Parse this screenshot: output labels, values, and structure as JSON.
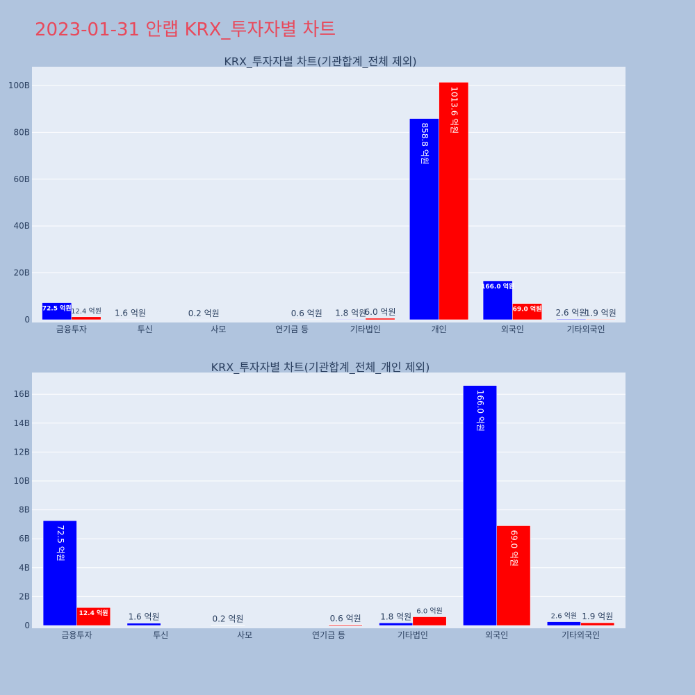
{
  "title": "2023-01-31 안랩 KRX_투자자별 차트",
  "colors": {
    "background": "#b0c4de",
    "plot_bg": "#e5ecf6",
    "title": "#e8495b",
    "buy": "#0000ff",
    "sell": "#ff0000",
    "text": "#2a3f5f"
  },
  "chart_data": [
    {
      "type": "bar",
      "title": "KRX_투자자별 차트(기관합계_전체 제외)",
      "categories": [
        "금융투자",
        "투신",
        "사모",
        "연기금 등",
        "기타법인",
        "개인",
        "외국인",
        "기타외국인"
      ],
      "series": [
        {
          "color": "#0000ff",
          "values": [
            7250000000,
            160000000,
            20000000,
            0,
            180000000,
            85880000000,
            16600000000,
            260000000
          ],
          "labels": [
            "72.5 억원",
            "1.6 억원",
            "0.2 억원",
            "",
            "1.8 억원",
            "858.8 억원",
            "166.0 억원",
            "2.6 억원"
          ]
        },
        {
          "color": "#ff0000",
          "values": [
            1240000000,
            0,
            0,
            60000000,
            600000000,
            101360000000,
            6900000000,
            190000000
          ],
          "labels": [
            "12.4 억원",
            "",
            "",
            "0.6 억원",
            "6.0 억원",
            "1013.6 억원",
            "69.0 억원",
            "1.9 억원"
          ]
        }
      ],
      "yticks": [
        0,
        20000000000,
        40000000000,
        60000000000,
        80000000000,
        100000000000
      ],
      "ytick_labels": [
        "0",
        "20B",
        "40B",
        "60B",
        "80B",
        "100B"
      ],
      "ylim": [
        0,
        108000000000
      ]
    },
    {
      "type": "bar",
      "title": "KRX_투자자별 차트(기관합계_전체_개인 제외)",
      "categories": [
        "금융투자",
        "투신",
        "사모",
        "연기금 등",
        "기타법인",
        "외국인",
        "기타외국인"
      ],
      "series": [
        {
          "color": "#0000ff",
          "values": [
            7250000000,
            160000000,
            20000000,
            0,
            180000000,
            16600000000,
            260000000
          ],
          "labels": [
            "72.5 억원",
            "1.6 억원",
            "0.2 억원",
            "",
            "1.8 억원",
            "166.0 억원",
            "2.6 억원"
          ]
        },
        {
          "color": "#ff0000",
          "values": [
            1240000000,
            0,
            0,
            60000000,
            600000000,
            6900000000,
            190000000
          ],
          "labels": [
            "12.4 억원",
            "",
            "",
            "0.6 억원",
            "6.0 억원",
            "69.0 억원",
            "1.9 억원"
          ]
        }
      ],
      "yticks": [
        0,
        2000000000,
        4000000000,
        6000000000,
        8000000000,
        10000000000,
        12000000000,
        14000000000,
        16000000000
      ],
      "ytick_labels": [
        "0",
        "2B",
        "4B",
        "6B",
        "8B",
        "10B",
        "12B",
        "14B",
        "16B"
      ],
      "ylim": [
        0,
        17500000000
      ]
    }
  ]
}
